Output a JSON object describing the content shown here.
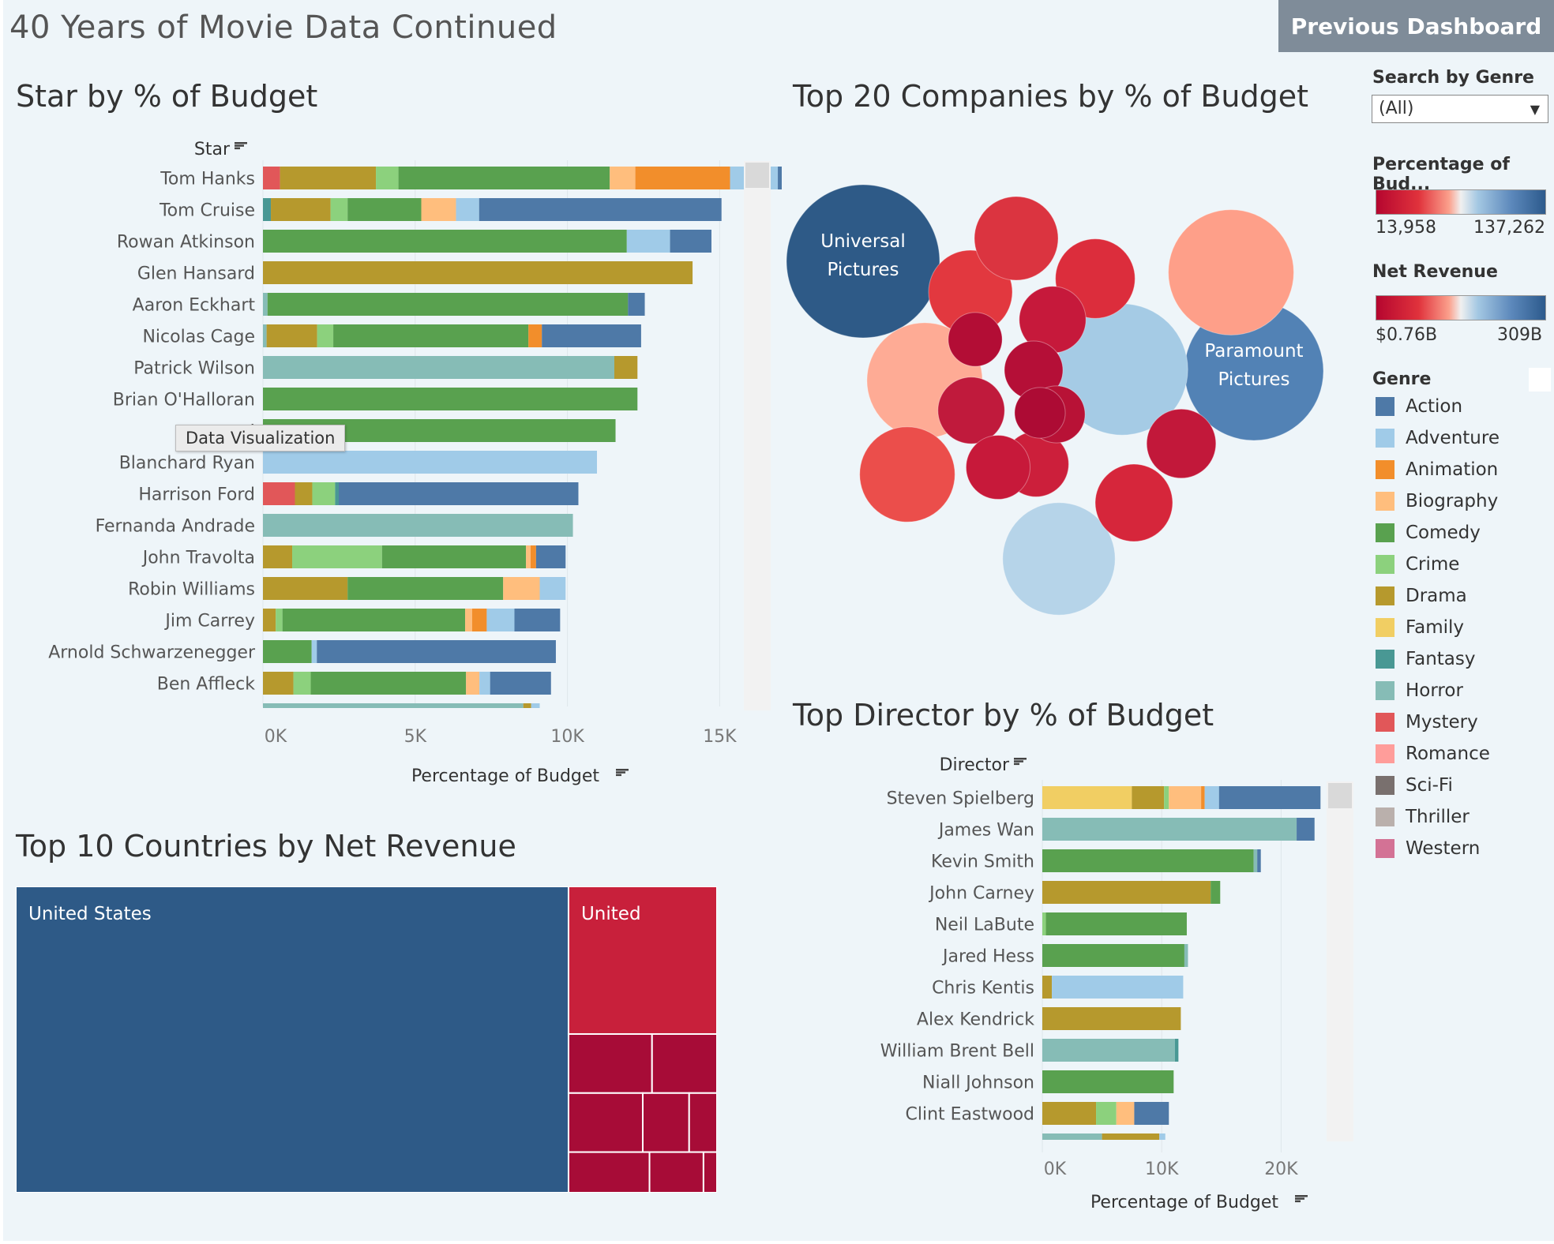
{
  "dashboard": {
    "title": "40 Years of Movie Data Continued",
    "prev_button": "Previous Dashboard",
    "tooltip": "Data Visualization"
  },
  "genres": [
    {
      "name": "Action",
      "color": "#4e79a7"
    },
    {
      "name": "Adventure",
      "color": "#a0cbe8"
    },
    {
      "name": "Animation",
      "color": "#f28e2b"
    },
    {
      "name": "Biography",
      "color": "#ffbe7d"
    },
    {
      "name": "Comedy",
      "color": "#59a14f"
    },
    {
      "name": "Crime",
      "color": "#8cd17d"
    },
    {
      "name": "Drama",
      "color": "#b6992d"
    },
    {
      "name": "Family",
      "color": "#f1ce63"
    },
    {
      "name": "Fantasy",
      "color": "#499894"
    },
    {
      "name": "Horror",
      "color": "#86bcb6"
    },
    {
      "name": "Mystery",
      "color": "#e15759"
    },
    {
      "name": "Romance",
      "color": "#ff9d9a"
    },
    {
      "name": "Sci-Fi",
      "color": "#79706e"
    },
    {
      "name": "Thriller",
      "color": "#bab0ac"
    },
    {
      "name": "Western",
      "color": "#d37295"
    }
  ],
  "filters": {
    "search_title": "Search by Genre",
    "search_value": "(All)",
    "pct_title": "Percentage of Bud...",
    "pct_min": "13,958",
    "pct_max": "137,262",
    "rev_title": "Net Revenue",
    "rev_min": "$0.76B",
    "rev_max": "309B",
    "genre_title": "Genre"
  },
  "chart_data": [
    {
      "id": "star",
      "type": "bar",
      "orientation": "horizontal-stacked",
      "title": "Star by % of Budget",
      "ylabel": "Star",
      "xlabel": "Percentage of Budget",
      "xlim": [
        0,
        17000
      ],
      "ticks": [
        {
          "v": 0,
          "label": "0K"
        },
        {
          "v": 5000,
          "label": "5K"
        },
        {
          "v": 10000,
          "label": "10K"
        },
        {
          "v": 15000,
          "label": "15K"
        }
      ],
      "categories": [
        "Tom Hanks",
        "Tom Cruise",
        "Rowan Atkinson",
        "Glen Hansard",
        "Aaron Eckhart",
        "Nicolas Cage",
        "Patrick Wilson",
        "Brian O'Halloran",
        "J",
        "Blanchard Ryan",
        "Harrison Ford",
        "Fernanda Andrade",
        "John Travolta",
        "Robin Williams",
        "Jim Carrey",
        "Arnold Schwarzenegger",
        "Ben Affleck",
        ""
      ],
      "rows": [
        [
          [
            "Mystery",
            560
          ],
          [
            "Drama",
            3150
          ],
          [
            "Crime",
            740
          ],
          [
            "Comedy",
            6940
          ],
          [
            "Biography",
            840
          ],
          [
            "Animation",
            3110
          ],
          [
            "Adventure",
            1570
          ],
          [
            "Action",
            740
          ]
        ],
        [
          [
            "Fantasy",
            260
          ],
          [
            "Drama",
            1960
          ],
          [
            "Crime",
            560
          ],
          [
            "Comedy",
            2420
          ],
          [
            "Biography",
            1140
          ],
          [
            "Adventure",
            760
          ],
          [
            "Action",
            7960
          ]
        ],
        [
          [
            "Comedy",
            11950
          ],
          [
            "Adventure",
            1420
          ],
          [
            "Action",
            1360
          ]
        ],
        [
          [
            "Drama",
            14110
          ]
        ],
        [
          [
            "Horror",
            150
          ],
          [
            "Comedy",
            11840
          ],
          [
            "Action",
            550
          ]
        ],
        [
          [
            "Horror",
            120
          ],
          [
            "Drama",
            1660
          ],
          [
            "Crime",
            530
          ],
          [
            "Comedy",
            6410
          ],
          [
            "Animation",
            440
          ],
          [
            "Action",
            3260
          ]
        ],
        [
          [
            "Horror",
            11540
          ],
          [
            "Drama",
            760
          ]
        ],
        [
          [
            "Comedy",
            12300
          ]
        ],
        [
          [
            "Comedy",
            11580
          ]
        ],
        [
          [
            "Adventure",
            10970
          ]
        ],
        [
          [
            "Mystery",
            1050
          ],
          [
            "Drama",
            570
          ],
          [
            "Crime",
            750
          ],
          [
            "Fantasy",
            120
          ],
          [
            "Action",
            7870
          ]
        ],
        [
          [
            "Horror",
            10180
          ]
        ],
        [
          [
            "Drama",
            960
          ],
          [
            "Crime",
            2950
          ],
          [
            "Comedy",
            4730
          ],
          [
            "Biography",
            150
          ],
          [
            "Animation",
            180
          ],
          [
            "Action",
            970
          ]
        ],
        [
          [
            "Drama",
            2780
          ],
          [
            "Comedy",
            5110
          ],
          [
            "Biography",
            1200
          ],
          [
            "Adventure",
            850
          ]
        ],
        [
          [
            "Drama",
            420
          ],
          [
            "Crime",
            220
          ],
          [
            "Comedy",
            6000
          ],
          [
            "Biography",
            230
          ],
          [
            "Animation",
            480
          ],
          [
            "Adventure",
            910
          ],
          [
            "Action",
            1500
          ]
        ],
        [
          [
            "Comedy",
            1600
          ],
          [
            "Adventure",
            170
          ],
          [
            "Action",
            7850
          ]
        ],
        [
          [
            "Drama",
            1000
          ],
          [
            "Crime",
            570
          ],
          [
            "Comedy",
            5100
          ],
          [
            "Biography",
            440
          ],
          [
            "Adventure",
            350
          ],
          [
            "Action",
            2000
          ]
        ],
        [
          [
            "Horror",
            8550
          ],
          [
            "Drama",
            260
          ],
          [
            "Adventure",
            280
          ]
        ]
      ]
    },
    {
      "id": "director",
      "type": "bar",
      "orientation": "horizontal-stacked",
      "title": "Top Director by % of Budget",
      "ylabel": "Director",
      "xlabel": "Percentage of Budget",
      "xlim": [
        0,
        25000
      ],
      "ticks": [
        {
          "v": 0,
          "label": "0K"
        },
        {
          "v": 10000,
          "label": "10K"
        },
        {
          "v": 20000,
          "label": "20K"
        }
      ],
      "categories": [
        "Steven Spielberg",
        "James Wan",
        "Kevin Smith",
        "John Carney",
        "Neil LaBute",
        "Jared Hess",
        "Chris Kentis",
        "Alex Kendrick",
        "William Brent Bell",
        "Niall Johnson",
        "Clint Eastwood",
        ""
      ],
      "rows": [
        [
          [
            "Family",
            7500
          ],
          [
            "Drama",
            2700
          ],
          [
            "Crime",
            400
          ],
          [
            "Biography",
            2700
          ],
          [
            "Animation",
            300
          ],
          [
            "Adventure",
            1200
          ],
          [
            "Action",
            8500
          ]
        ],
        [
          [
            "Horror",
            21300
          ],
          [
            "Action",
            1500
          ]
        ],
        [
          [
            "Comedy",
            17700
          ],
          [
            "Horror",
            300
          ],
          [
            "Action",
            300
          ]
        ],
        [
          [
            "Drama",
            14100
          ],
          [
            "Comedy",
            800
          ]
        ],
        [
          [
            "Crime",
            300
          ],
          [
            "Comedy",
            11800
          ]
        ],
        [
          [
            "Comedy",
            11900
          ],
          [
            "Horror",
            300
          ]
        ],
        [
          [
            "Drama",
            800
          ],
          [
            "Adventure",
            11000
          ]
        ],
        [
          [
            "Drama",
            11600
          ]
        ],
        [
          [
            "Horror",
            11100
          ],
          [
            "Fantasy",
            300
          ]
        ],
        [
          [
            "Comedy",
            11000
          ]
        ],
        [
          [
            "Drama",
            4500
          ],
          [
            "Crime",
            1700
          ],
          [
            "Biography",
            1500
          ],
          [
            "Action",
            2900
          ]
        ],
        [
          [
            "Horror",
            5000
          ],
          [
            "Drama",
            4800
          ],
          [
            "Adventure",
            500
          ]
        ]
      ]
    },
    {
      "id": "companies",
      "type": "bubble",
      "title": "Top 20 Companies by % of Budget",
      "color_by": "Net Revenue",
      "items": [
        {
          "label": "Universal Pictures",
          "value": 137262,
          "color": "#2e5a87"
        },
        {
          "label": "Paramount Pictures",
          "value": 113000,
          "color": "#5282b5"
        },
        {
          "label": "",
          "value": 101000,
          "color": "#a5cbe5"
        },
        {
          "label": "",
          "value": 92000,
          "color": "#fe9f89"
        },
        {
          "label": "",
          "value": 78000,
          "color": "#feab95"
        },
        {
          "label": "",
          "value": 74000,
          "color": "#b6d4e9"
        },
        {
          "label": "",
          "value": 53000,
          "color": "#eb4e4b"
        },
        {
          "label": "",
          "value": 41000,
          "color": "#e2383f"
        },
        {
          "label": "",
          "value": 41000,
          "color": "#db3440"
        },
        {
          "label": "",
          "value": 37000,
          "color": "#dc2d3c"
        },
        {
          "label": "",
          "value": 35000,
          "color": "#d6263b"
        },
        {
          "label": "",
          "value": 28000,
          "color": "#c2183a"
        },
        {
          "label": "",
          "value": 26000,
          "color": "#c6193b"
        },
        {
          "label": "",
          "value": 26000,
          "color": "#c01a3c"
        },
        {
          "label": "",
          "value": 25000,
          "color": "#cc1f3b"
        },
        {
          "label": "",
          "value": 24000,
          "color": "#c7193a"
        },
        {
          "label": "",
          "value": 20000,
          "color": "#b50f37"
        },
        {
          "label": "",
          "value": 19000,
          "color": "#b81236"
        },
        {
          "label": "",
          "value": 17000,
          "color": "#b30d35"
        },
        {
          "label": "",
          "value": 15000,
          "color": "#ad0b34"
        }
      ]
    },
    {
      "id": "countries",
      "type": "treemap",
      "title": "Top 10 Countries by Net Revenue",
      "items": [
        {
          "label": "United States",
          "value": 309,
          "color": "#2e5a87"
        },
        {
          "label": "United",
          "value": 40,
          "color": "#c8203b"
        },
        {
          "label": "",
          "value": 9,
          "color": "#a70c37"
        },
        {
          "label": "",
          "value": 7,
          "color": "#a70c37"
        },
        {
          "label": "",
          "value": 8,
          "color": "#a70c37"
        },
        {
          "label": "",
          "value": 5,
          "color": "#a70c37"
        },
        {
          "label": "",
          "value": 3,
          "color": "#a70c37"
        },
        {
          "label": "",
          "value": 6,
          "color": "#a70c37"
        },
        {
          "label": "",
          "value": 4,
          "color": "#a70c37"
        },
        {
          "label": "",
          "value": 1,
          "color": "#a70c37"
        }
      ]
    }
  ]
}
